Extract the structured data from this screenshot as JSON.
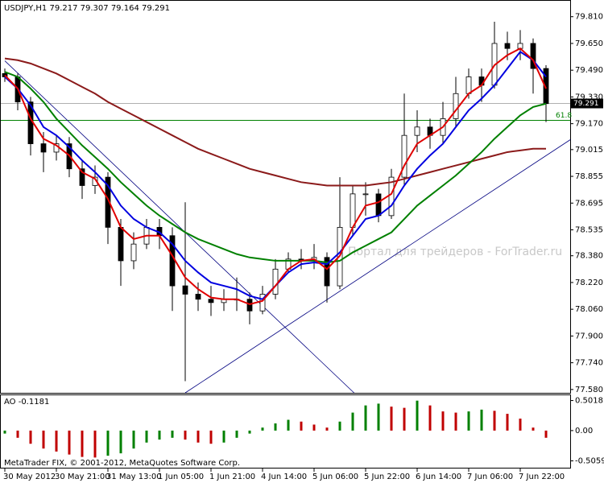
{
  "chart_data": [
    {
      "type": "candlestick",
      "title": "USDJPY,H1  79.217 79.307 79.164 79.291",
      "watermark": "Портал для трейдеров - ForTrader.ru",
      "footer": "MetaTrader FIX, © 2001-2012, MetaQuotes Software Corp.",
      "categories": [
        "30 May 2012",
        null,
        null,
        null,
        "30 May 21:00",
        null,
        null,
        null,
        "31 May 13:00",
        null,
        null,
        null,
        "1 Jun 05:00",
        null,
        null,
        null,
        "1 Jun 21:00",
        null,
        null,
        null,
        "4 Jun 14:00",
        null,
        null,
        null,
        "5 Jun 06:00",
        null,
        null,
        null,
        "5 Jun 22:00",
        null,
        null,
        null,
        "6 Jun 14:00",
        null,
        null,
        null,
        "7 Jun 06:00",
        null,
        null,
        null,
        "7 Jun 22:00",
        null,
        null
      ],
      "open": [
        79.47,
        79.45,
        79.3,
        79.05,
        79.0,
        79.05,
        78.9,
        78.8,
        78.85,
        78.55,
        78.35,
        78.45,
        78.55,
        78.5,
        78.2,
        78.15,
        78.12,
        78.1,
        78.12,
        78.12,
        78.05,
        78.15,
        78.3,
        78.36,
        78.35,
        78.37,
        78.2,
        78.55,
        78.75,
        78.75,
        78.62,
        78.85,
        79.1,
        79.15,
        79.1,
        79.2,
        79.35,
        79.45,
        79.4,
        79.65,
        79.62,
        79.65,
        79.5
      ],
      "high": [
        79.5,
        79.47,
        79.33,
        79.12,
        79.1,
        79.09,
        78.95,
        78.92,
        78.88,
        78.6,
        78.52,
        78.6,
        78.6,
        78.55,
        78.7,
        78.22,
        78.2,
        78.18,
        78.25,
        78.16,
        78.2,
        78.36,
        78.4,
        78.42,
        78.45,
        78.4,
        78.85,
        78.8,
        78.82,
        78.78,
        78.9,
        79.35,
        79.25,
        79.2,
        79.3,
        79.45,
        79.5,
        79.5,
        79.78,
        79.72,
        79.73,
        79.68,
        79.52
      ],
      "low": [
        79.42,
        79.25,
        78.98,
        78.88,
        78.95,
        78.85,
        78.72,
        78.75,
        78.45,
        78.2,
        78.3,
        78.42,
        78.42,
        78.05,
        77.63,
        78.05,
        78.02,
        78.05,
        78.05,
        77.97,
        78.03,
        78.12,
        78.28,
        78.3,
        78.3,
        78.1,
        78.18,
        78.5,
        78.62,
        78.58,
        78.6,
        78.8,
        79.0,
        79.02,
        79.05,
        79.15,
        79.32,
        79.3,
        79.38,
        79.55,
        79.55,
        79.35,
        79.18
      ],
      "close": [
        79.45,
        79.3,
        79.05,
        79.0,
        79.05,
        78.9,
        78.8,
        78.85,
        78.55,
        78.35,
        78.45,
        78.55,
        78.5,
        78.2,
        78.15,
        78.12,
        78.1,
        78.12,
        78.12,
        78.05,
        78.15,
        78.3,
        78.36,
        78.35,
        78.37,
        78.2,
        78.55,
        78.75,
        78.75,
        78.62,
        78.85,
        79.1,
        79.15,
        79.1,
        79.2,
        79.35,
        79.45,
        79.4,
        79.65,
        79.62,
        79.65,
        79.5,
        79.29
      ],
      "series": [
        {
          "color": "#8b1a1a",
          "values": [
            79.56,
            79.55,
            79.53,
            79.5,
            79.47,
            79.43,
            79.39,
            79.35,
            79.3,
            79.26,
            79.22,
            79.18,
            79.14,
            79.1,
            79.06,
            79.02,
            78.99,
            78.96,
            78.93,
            78.9,
            78.88,
            78.86,
            78.84,
            78.82,
            78.81,
            78.8,
            78.8,
            78.8,
            78.8,
            78.81,
            78.82,
            78.84,
            78.86,
            78.88,
            78.9,
            78.92,
            78.94,
            78.96,
            78.98,
            79.0,
            79.01,
            79.02,
            79.02
          ]
        },
        {
          "color": "#008000",
          "values": [
            79.48,
            79.45,
            79.38,
            79.3,
            79.2,
            79.12,
            79.04,
            78.97,
            78.9,
            78.82,
            78.75,
            78.68,
            78.62,
            78.57,
            78.52,
            78.48,
            78.45,
            78.42,
            78.39,
            78.37,
            78.36,
            78.35,
            78.35,
            78.35,
            78.35,
            78.34,
            78.35,
            78.4,
            78.44,
            78.48,
            78.52,
            78.6,
            78.68,
            78.74,
            78.8,
            78.86,
            78.93,
            79.0,
            79.08,
            79.15,
            79.22,
            79.27,
            79.29
          ]
        },
        {
          "color": "#0000e0",
          "values": [
            79.45,
            79.38,
            79.28,
            79.15,
            79.1,
            79.03,
            78.95,
            78.88,
            78.8,
            78.68,
            78.6,
            78.55,
            78.52,
            78.45,
            78.35,
            78.28,
            78.22,
            78.2,
            78.18,
            78.14,
            78.12,
            78.2,
            78.28,
            78.33,
            78.34,
            78.33,
            78.4,
            78.5,
            78.6,
            78.62,
            78.68,
            78.8,
            78.9,
            78.98,
            79.05,
            79.15,
            79.25,
            79.32,
            79.4,
            79.5,
            79.6,
            79.55,
            79.45
          ]
        },
        {
          "color": "#e00000",
          "values": [
            79.46,
            79.38,
            79.2,
            79.08,
            79.04,
            78.98,
            78.88,
            78.84,
            78.72,
            78.55,
            78.48,
            78.5,
            78.5,
            78.38,
            78.25,
            78.18,
            78.13,
            78.12,
            78.12,
            78.09,
            78.11,
            78.2,
            78.3,
            78.35,
            78.36,
            78.3,
            78.38,
            78.55,
            78.68,
            78.7,
            78.75,
            78.92,
            79.05,
            79.1,
            79.15,
            79.25,
            79.35,
            79.4,
            79.52,
            79.58,
            79.62,
            79.55,
            79.38
          ]
        }
      ],
      "trendlines": [
        {
          "color": "#000080",
          "x": [
            0,
            27.1
          ],
          "y": [
            79.546,
            77.56
          ]
        },
        {
          "color": "#000080",
          "x": [
            14,
            43.9
          ],
          "y": [
            77.56,
            79.075
          ]
        }
      ],
      "level": {
        "value": 79.19,
        "label": "61.8",
        "color": "#008000"
      },
      "last_price": {
        "value": 79.291,
        "label": "79.291"
      },
      "ylim": [
        77.56,
        79.905
      ],
      "yticks": [
        {
          "value": 79.81,
          "label": "79.810"
        },
        {
          "value": 79.65,
          "label": "79.650"
        },
        {
          "value": 79.49,
          "label": "79.490"
        },
        {
          "value": 79.33,
          "label": "79.330"
        },
        {
          "value": 79.17,
          "label": "79.170"
        },
        {
          "value": 79.015,
          "label": "79.015"
        },
        {
          "value": 78.855,
          "label": "78.855"
        },
        {
          "value": 78.695,
          "label": "78.695"
        },
        {
          "value": 78.535,
          "label": "78.535"
        },
        {
          "value": 78.38,
          "label": "78.380"
        },
        {
          "value": 78.22,
          "label": "78.220"
        },
        {
          "value": 78.06,
          "label": "78.060"
        },
        {
          "value": 77.9,
          "label": "77.900"
        },
        {
          "value": 77.74,
          "label": "77.740"
        },
        {
          "value": 77.58,
          "label": "77.580"
        }
      ]
    },
    {
      "type": "histogram",
      "title": "AO -0.1181",
      "up_color": "#008000",
      "down_color": "#c00000",
      "values": [
        -0.05,
        -0.12,
        -0.22,
        -0.3,
        -0.35,
        -0.4,
        -0.44,
        -0.45,
        -0.42,
        -0.38,
        -0.3,
        -0.2,
        -0.15,
        -0.12,
        -0.15,
        -0.2,
        -0.22,
        -0.2,
        -0.12,
        -0.05,
        0.05,
        0.12,
        0.18,
        0.15,
        0.1,
        0.05,
        0.15,
        0.3,
        0.42,
        0.45,
        0.4,
        0.38,
        0.5,
        0.42,
        0.32,
        0.3,
        0.32,
        0.35,
        0.33,
        0.28,
        0.2,
        0.05,
        -0.12
      ],
      "ylim": [
        -0.62,
        0.59
      ],
      "yticks": [
        0.5018,
        {
          "value": 0,
          "label": "0.00"
        },
        -0.5059
      ]
    }
  ]
}
